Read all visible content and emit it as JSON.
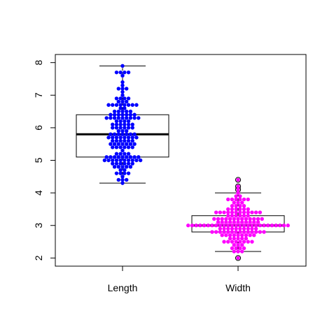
{
  "chart_data": {
    "type": "box+beeswarm",
    "title": "",
    "xlabel": "",
    "ylabel": "",
    "ylim": [
      1.75,
      8.25
    ],
    "y_ticks": [
      "2",
      "3",
      "4",
      "5",
      "6",
      "7",
      "8"
    ],
    "grid": false,
    "categories": [
      "Length",
      "Width"
    ],
    "colors": {
      "Length": "#0000ff",
      "Width": "#ff00ff"
    },
    "series": [
      {
        "name": "Length",
        "box": {
          "min": 4.3,
          "q1": 5.1,
          "median": 5.8,
          "q3": 6.4,
          "max": 7.9,
          "outliers": []
        },
        "values": [
          4.3,
          4.4,
          4.4,
          4.4,
          4.5,
          4.6,
          4.6,
          4.6,
          4.6,
          4.7,
          4.7,
          4.8,
          4.8,
          4.8,
          4.8,
          4.8,
          4.9,
          4.9,
          4.9,
          4.9,
          4.9,
          4.9,
          5.0,
          5.0,
          5.0,
          5.0,
          5.0,
          5.0,
          5.0,
          5.0,
          5.0,
          5.0,
          5.1,
          5.1,
          5.1,
          5.1,
          5.1,
          5.1,
          5.1,
          5.1,
          5.1,
          5.2,
          5.2,
          5.2,
          5.2,
          5.3,
          5.4,
          5.4,
          5.4,
          5.4,
          5.4,
          5.4,
          5.5,
          5.5,
          5.5,
          5.5,
          5.5,
          5.5,
          5.5,
          5.6,
          5.6,
          5.6,
          5.6,
          5.6,
          5.6,
          5.7,
          5.7,
          5.7,
          5.7,
          5.7,
          5.7,
          5.7,
          5.7,
          5.8,
          5.8,
          5.8,
          5.8,
          5.8,
          5.8,
          5.8,
          5.9,
          5.9,
          5.9,
          6.0,
          6.0,
          6.0,
          6.0,
          6.0,
          6.0,
          6.1,
          6.1,
          6.1,
          6.1,
          6.1,
          6.1,
          6.2,
          6.2,
          6.2,
          6.2,
          6.3,
          6.3,
          6.3,
          6.3,
          6.3,
          6.3,
          6.3,
          6.3,
          6.3,
          6.4,
          6.4,
          6.4,
          6.4,
          6.4,
          6.4,
          6.4,
          6.5,
          6.5,
          6.5,
          6.5,
          6.5,
          6.6,
          6.6,
          6.7,
          6.7,
          6.7,
          6.7,
          6.7,
          6.7,
          6.7,
          6.7,
          6.8,
          6.8,
          6.8,
          6.9,
          6.9,
          6.9,
          6.9,
          7.0,
          7.1,
          7.2,
          7.2,
          7.2,
          7.3,
          7.4,
          7.6,
          7.7,
          7.7,
          7.7,
          7.7,
          7.9
        ]
      },
      {
        "name": "Width",
        "box": {
          "min": 2.2,
          "q1": 2.8,
          "median": 3.0,
          "q3": 3.3,
          "max": 4.0,
          "outliers": [
            2.0,
            4.1,
            4.2,
            4.4
          ]
        },
        "values": [
          2.0,
          2.2,
          2.2,
          2.2,
          2.3,
          2.3,
          2.3,
          2.3,
          2.4,
          2.4,
          2.4,
          2.5,
          2.5,
          2.5,
          2.5,
          2.5,
          2.5,
          2.5,
          2.5,
          2.6,
          2.6,
          2.6,
          2.6,
          2.6,
          2.7,
          2.7,
          2.7,
          2.7,
          2.7,
          2.7,
          2.7,
          2.7,
          2.7,
          2.8,
          2.8,
          2.8,
          2.8,
          2.8,
          2.8,
          2.8,
          2.8,
          2.8,
          2.8,
          2.8,
          2.8,
          2.8,
          2.8,
          2.9,
          2.9,
          2.9,
          2.9,
          2.9,
          2.9,
          2.9,
          2.9,
          2.9,
          2.9,
          3.0,
          3.0,
          3.0,
          3.0,
          3.0,
          3.0,
          3.0,
          3.0,
          3.0,
          3.0,
          3.0,
          3.0,
          3.0,
          3.0,
          3.0,
          3.0,
          3.0,
          3.0,
          3.0,
          3.0,
          3.0,
          3.0,
          3.0,
          3.0,
          3.0,
          3.0,
          3.1,
          3.1,
          3.1,
          3.1,
          3.1,
          3.1,
          3.1,
          3.1,
          3.1,
          3.1,
          3.1,
          3.2,
          3.2,
          3.2,
          3.2,
          3.2,
          3.2,
          3.2,
          3.2,
          3.2,
          3.2,
          3.2,
          3.2,
          3.2,
          3.3,
          3.3,
          3.3,
          3.3,
          3.3,
          3.3,
          3.4,
          3.4,
          3.4,
          3.4,
          3.4,
          3.4,
          3.4,
          3.4,
          3.4,
          3.4,
          3.4,
          3.4,
          3.5,
          3.5,
          3.5,
          3.5,
          3.5,
          3.5,
          3.6,
          3.6,
          3.6,
          3.6,
          3.7,
          3.7,
          3.7,
          3.8,
          3.8,
          3.8,
          3.8,
          3.8,
          3.8,
          3.9,
          3.9,
          4.0,
          4.1,
          4.2,
          4.4
        ]
      }
    ]
  }
}
